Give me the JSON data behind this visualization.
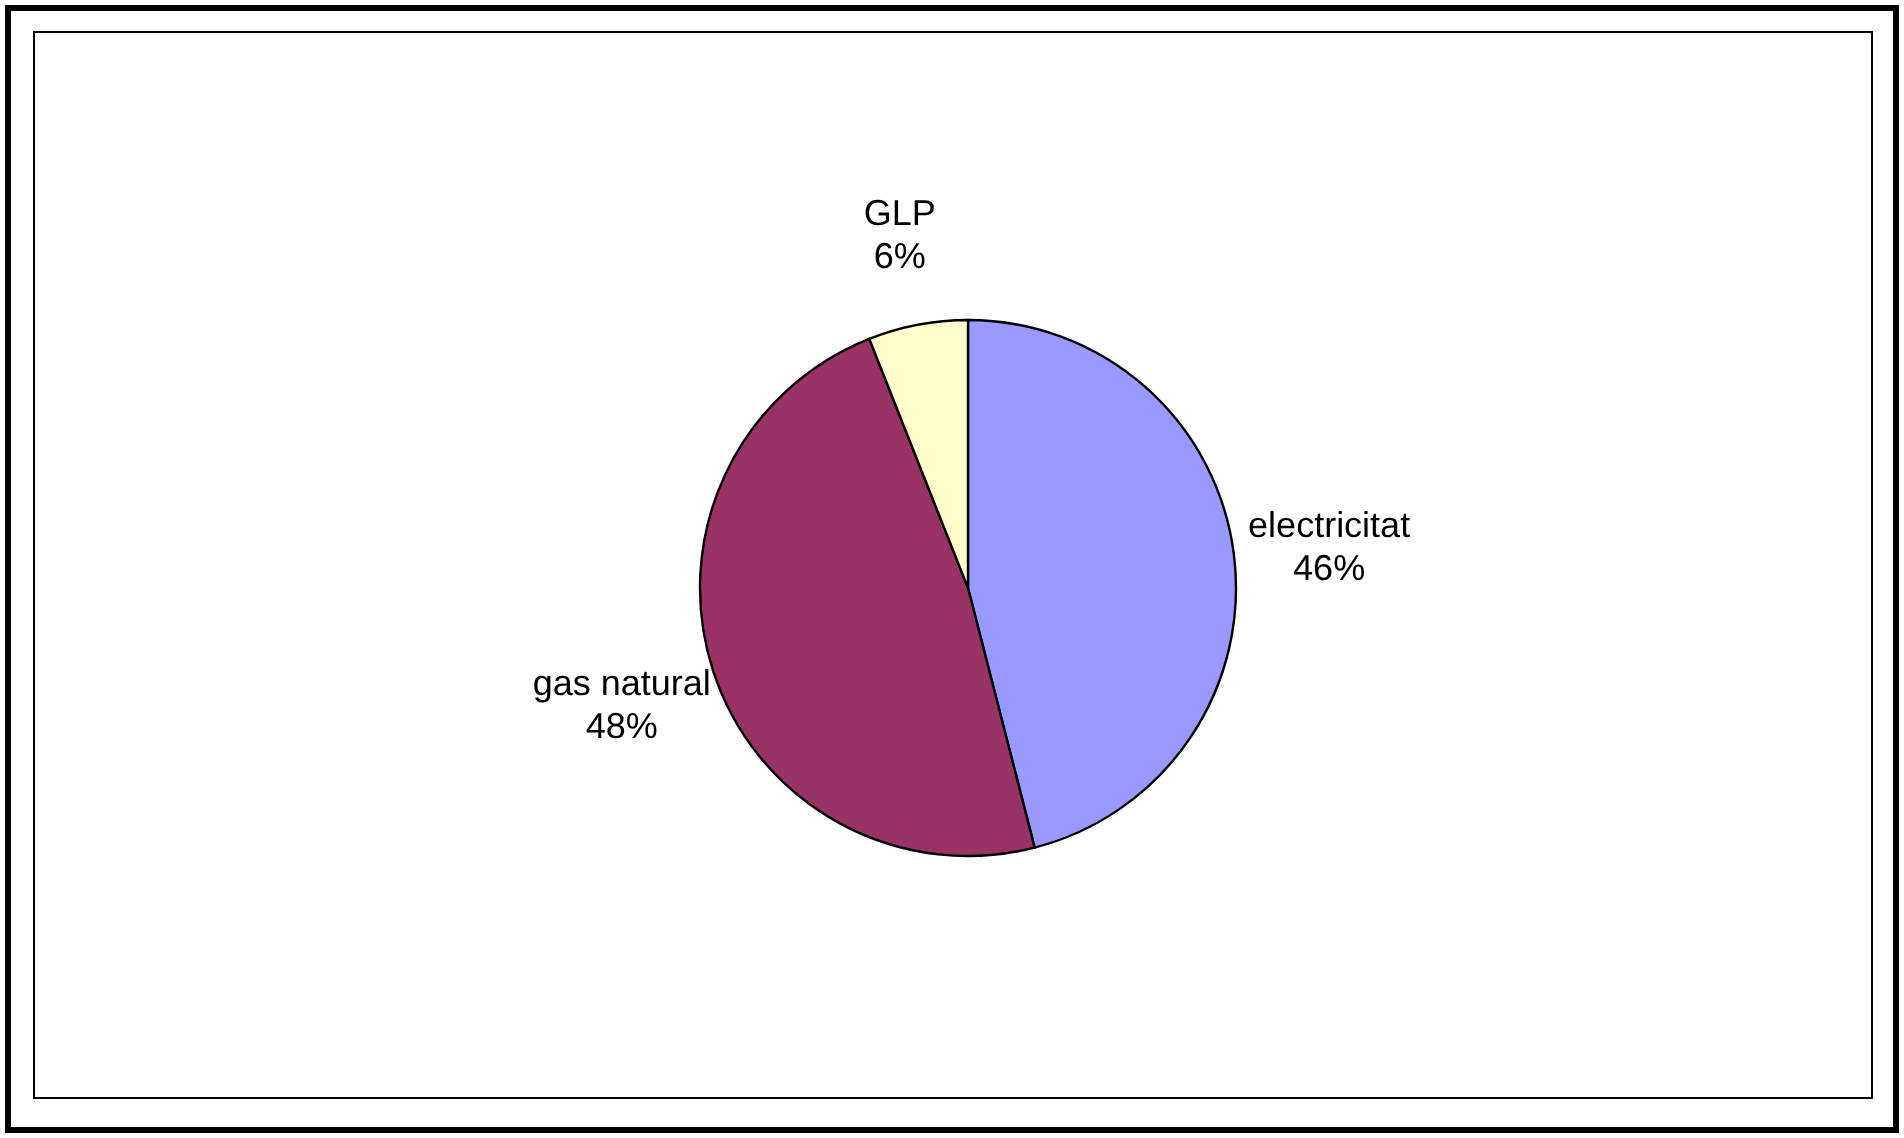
{
  "chart_data": {
    "type": "pie",
    "categories": [
      "electricitat",
      "gas natural",
      "GLP"
    ],
    "values": [
      46,
      48,
      6
    ],
    "colors": [
      "#9999ff",
      "#993366",
      "#ffffcc"
    ],
    "value_labels": [
      "46%",
      "48%",
      "6%"
    ]
  }
}
